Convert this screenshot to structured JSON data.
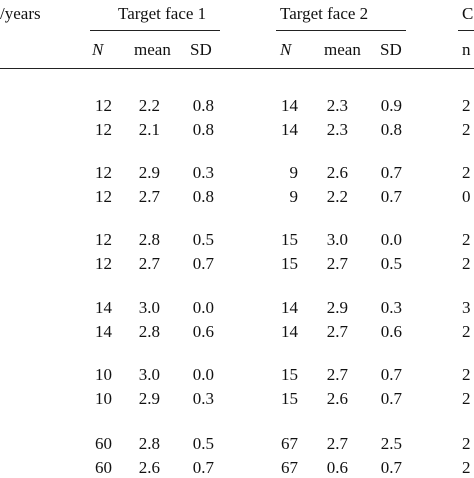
{
  "header": {
    "col0": "/years",
    "group1": "Target face 1",
    "group2": "Target face 2",
    "group3_partial": "C"
  },
  "subheader": {
    "n": "N",
    "mean": "mean",
    "sd": "SD",
    "g3_partial": "n"
  },
  "rows": [
    {
      "n1": "12",
      "m1": "2.2",
      "s1": "0.8",
      "n2": "14",
      "m2": "2.3",
      "s2": "0.9",
      "c": "2"
    },
    {
      "n1": "12",
      "m1": "2.1",
      "s1": "0.8",
      "n2": "14",
      "m2": "2.3",
      "s2": "0.8",
      "c": "2"
    },
    {
      "n1": "12",
      "m1": "2.9",
      "s1": "0.3",
      "n2": "9",
      "m2": "2.6",
      "s2": "0.7",
      "c": "2"
    },
    {
      "n1": "12",
      "m1": "2.7",
      "s1": "0.8",
      "n2": "9",
      "m2": "2.2",
      "s2": "0.7",
      "c": "0"
    },
    {
      "n1": "12",
      "m1": "2.8",
      "s1": "0.5",
      "n2": "15",
      "m2": "3.0",
      "s2": "0.0",
      "c": "2"
    },
    {
      "n1": "12",
      "m1": "2.7",
      "s1": "0.7",
      "n2": "15",
      "m2": "2.7",
      "s2": "0.5",
      "c": "2"
    },
    {
      "n1": "14",
      "m1": "3.0",
      "s1": "0.0",
      "n2": "14",
      "m2": "2.9",
      "s2": "0.3",
      "c": "3"
    },
    {
      "n1": "14",
      "m1": "2.8",
      "s1": "0.6",
      "n2": "14",
      "m2": "2.7",
      "s2": "0.6",
      "c": "2"
    },
    {
      "n1": "10",
      "m1": "3.0",
      "s1": "0.0",
      "n2": "15",
      "m2": "2.7",
      "s2": "0.7",
      "c": "2"
    },
    {
      "n1": "10",
      "m1": "2.9",
      "s1": "0.3",
      "n2": "15",
      "m2": "2.6",
      "s2": "0.7",
      "c": "2"
    },
    {
      "n1": "60",
      "m1": "2.8",
      "s1": "0.5",
      "n2": "67",
      "m2": "2.7",
      "s2": "2.5",
      "c": "2"
    },
    {
      "n1": "60",
      "m1": "2.6",
      "s1": "0.7",
      "n2": "67",
      "m2": "0.6",
      "s2": "0.7",
      "c": "2"
    }
  ]
}
